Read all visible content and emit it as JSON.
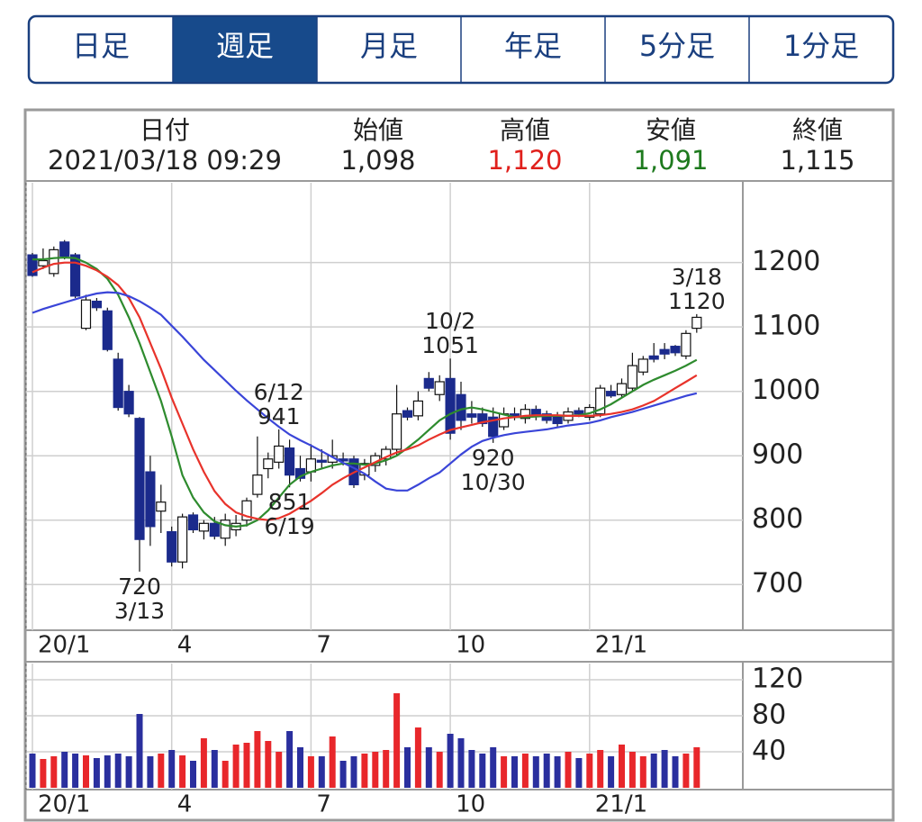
{
  "tabs": [
    {
      "label": "日足"
    },
    {
      "label": "週足",
      "selected": true
    },
    {
      "label": "月足"
    },
    {
      "label": "年足"
    },
    {
      "label": "5分足"
    },
    {
      "label": "1分足"
    }
  ],
  "quote": [
    {
      "label": "日付",
      "value": "2021/03/18 09:29",
      "color": "#222222"
    },
    {
      "label": "始値",
      "value": "1,098",
      "color": "#222222"
    },
    {
      "label": "高値",
      "value": "1,120",
      "color": "#e0201c"
    },
    {
      "label": "安値",
      "value": "1,091",
      "color": "#1e7a1e"
    },
    {
      "label": "終値",
      "value": "1,115",
      "color": "#222222"
    }
  ],
  "chart_data": [
    {
      "type": "candlestick",
      "categories": [
        "20/1",
        null,
        null,
        null,
        null,
        null,
        null,
        null,
        null,
        null,
        null,
        null,
        null,
        "4",
        null,
        null,
        null,
        null,
        null,
        null,
        null,
        null,
        null,
        null,
        null,
        null,
        "7",
        null,
        null,
        null,
        null,
        null,
        null,
        null,
        null,
        null,
        null,
        null,
        null,
        "10",
        null,
        null,
        null,
        null,
        null,
        null,
        null,
        null,
        null,
        null,
        null,
        null,
        "21/1",
        null,
        null,
        null,
        null,
        null,
        null,
        null,
        null,
        null,
        null
      ],
      "open": [
        1212,
        1195,
        1183,
        1232,
        1212,
        1098,
        1140,
        1125,
        1050,
        1000,
        958,
        875,
        814,
        782,
        735,
        808,
        783,
        795,
        772,
        785,
        800,
        840,
        880,
        890,
        912,
        880,
        875,
        893,
        890,
        895,
        895,
        870,
        885,
        895,
        910,
        970,
        962,
        1020,
        995,
        1020,
        995,
        965,
        965,
        960,
        945,
        965,
        958,
        972,
        965,
        960,
        955,
        970,
        960,
        965,
        1000,
        995,
        1005,
        1030,
        1055,
        1065,
        1070,
        1055,
        1098
      ],
      "high": [
        1215,
        1222,
        1225,
        1235,
        1215,
        1150,
        1145,
        1130,
        1060,
        1010,
        960,
        900,
        855,
        790,
        810,
        812,
        800,
        805,
        810,
        808,
        835,
        930,
        905,
        941,
        925,
        900,
        918,
        910,
        925,
        905,
        900,
        895,
        905,
        915,
        1010,
        975,
        1000,
        1030,
        1025,
        1051,
        1015,
        985,
        975,
        975,
        975,
        975,
        980,
        978,
        970,
        968,
        975,
        975,
        980,
        1010,
        1010,
        1020,
        1060,
        1055,
        1075,
        1075,
        1072,
        1095,
        1120
      ],
      "low": [
        1178,
        1190,
        1178,
        1205,
        1145,
        1095,
        1125,
        1062,
        970,
        960,
        720,
        760,
        780,
        728,
        725,
        780,
        770,
        770,
        760,
        775,
        790,
        835,
        865,
        880,
        851,
        860,
        860,
        880,
        880,
        885,
        850,
        862,
        875,
        885,
        900,
        955,
        955,
        1000,
        985,
        925,
        940,
        950,
        945,
        920,
        940,
        955,
        950,
        955,
        950,
        945,
        950,
        960,
        955,
        960,
        990,
        990,
        1000,
        1025,
        1045,
        1050,
        1055,
        1050,
        1091
      ],
      "close": [
        1180,
        1203,
        1220,
        1210,
        1148,
        1142,
        1130,
        1065,
        975,
        965,
        770,
        790,
        828,
        735,
        805,
        785,
        795,
        775,
        800,
        795,
        830,
        870,
        895,
        915,
        870,
        865,
        895,
        890,
        900,
        892,
        855,
        888,
        900,
        910,
        965,
        960,
        985,
        1005,
        1015,
        935,
        955,
        960,
        950,
        930,
        965,
        960,
        972,
        962,
        955,
        950,
        968,
        965,
        975,
        1005,
        993,
        1012,
        1040,
        1050,
        1050,
        1058,
        1060,
        1090,
        1115
      ],
      "up_color": "#ffffff",
      "down_color": "#1b2a8c",
      "series": [
        {
          "color": "#2e8b2e",
          "values": [
            1205,
            1205,
            1207,
            1208,
            1207,
            1200,
            1190,
            1175,
            1150,
            1115,
            1075,
            1030,
            985,
            930,
            870,
            835,
            812,
            798,
            792,
            790,
            792,
            800,
            815,
            835,
            855,
            868,
            875,
            880,
            885,
            888,
            888,
            886,
            888,
            893,
            900,
            912,
            925,
            940,
            955,
            965,
            972,
            975,
            972,
            968,
            964,
            960,
            960,
            961,
            962,
            962,
            962,
            963,
            966,
            972,
            980,
            990,
            1000,
            1010,
            1018,
            1025,
            1032,
            1040,
            1049
          ]
        },
        {
          "color": "#e8332b",
          "values": [
            1185,
            1192,
            1198,
            1200,
            1200,
            1195,
            1188,
            1178,
            1165,
            1145,
            1115,
            1075,
            1035,
            990,
            950,
            910,
            875,
            845,
            825,
            812,
            806,
            802,
            800,
            803,
            810,
            820,
            830,
            842,
            855,
            865,
            874,
            882,
            890,
            898,
            905,
            910,
            916,
            925,
            933,
            940,
            944,
            948,
            952,
            955,
            958,
            960,
            962,
            963,
            963,
            963,
            962,
            962,
            962,
            963,
            965,
            968,
            972,
            978,
            985,
            995,
            1005,
            1015,
            1025
          ]
        },
        {
          "color": "#3a45d8",
          "values": [
            1122,
            1128,
            1133,
            1138,
            1143,
            1148,
            1152,
            1154,
            1153,
            1148,
            1140,
            1130,
            1119,
            1102,
            1085,
            1067,
            1049,
            1033,
            1017,
            1001,
            986,
            972,
            958,
            945,
            933,
            924,
            916,
            907,
            898,
            889,
            881,
            872,
            860,
            849,
            846,
            846,
            855,
            865,
            874,
            888,
            902,
            914,
            923,
            928,
            932,
            935,
            937,
            939,
            941,
            944,
            947,
            949,
            951,
            955,
            960,
            964,
            968,
            973,
            978,
            983,
            988,
            993,
            997
          ]
        }
      ],
      "annotations": [
        {
          "date": "3/18",
          "value": 1120
        },
        {
          "date": "10/2",
          "value": 1051
        },
        {
          "date": "6/12",
          "value": 941
        },
        {
          "date": "6/19",
          "value": 851
        },
        {
          "date": "10/30",
          "value": 920
        },
        {
          "date": "3/13",
          "value": 720
        }
      ],
      "ylim": [
        629,
        1324
      ],
      "yticks": [
        700,
        800,
        900,
        1000,
        1100,
        1200
      ],
      "grid": true
    },
    {
      "type": "bar",
      "values": [
        38,
        32,
        35,
        40,
        38,
        36,
        33,
        36,
        38,
        35,
        82,
        35,
        38,
        42,
        36,
        30,
        55,
        42,
        30,
        48,
        50,
        63,
        52,
        40,
        63,
        45,
        35,
        35,
        57,
        30,
        35,
        38,
        40,
        42,
        105,
        45,
        67,
        45,
        40,
        60,
        55,
        42,
        38,
        45,
        35,
        35,
        38,
        35,
        38,
        35,
        40,
        33,
        38,
        42,
        35,
        48,
        40,
        35,
        38,
        42,
        35,
        38,
        45
      ],
      "up_color": "#e8272b",
      "down_color": "#2a2f9e",
      "ylim": [
        0,
        135
      ],
      "yticks": [
        40,
        80,
        120
      ],
      "grid": true
    }
  ]
}
